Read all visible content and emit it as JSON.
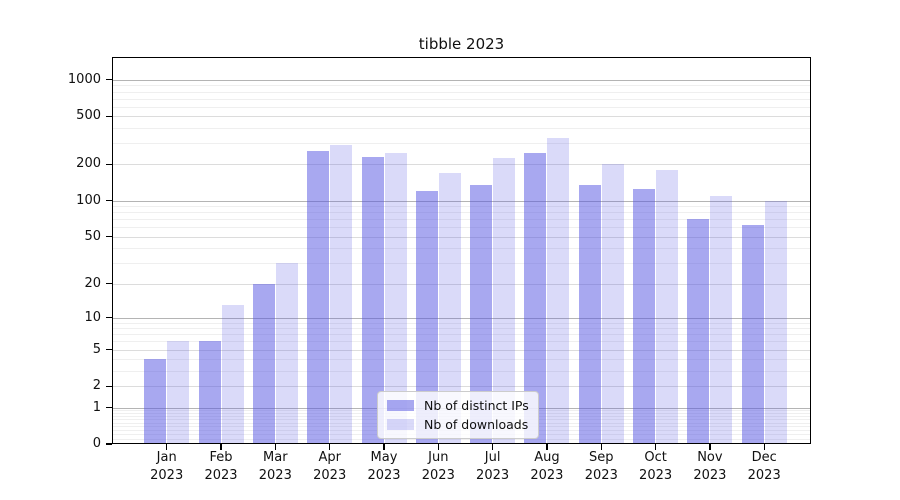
{
  "title": "tibble 2023",
  "chart_data": {
    "type": "bar",
    "title": "tibble 2023",
    "categories": [
      "Jan",
      "Feb",
      "Mar",
      "Apr",
      "May",
      "Jun",
      "Jul",
      "Aug",
      "Sep",
      "Oct",
      "Nov",
      "Dec"
    ],
    "category_year": "2023",
    "series": [
      {
        "name": "Nb of distinct IPs",
        "color": "#5151E180",
        "values": [
          4,
          6,
          20,
          260,
          230,
          120,
          135,
          250,
          135,
          125,
          70,
          63
        ]
      },
      {
        "name": "Nb of downloads",
        "color": "#5151E136",
        "values": [
          6,
          13,
          30,
          290,
          250,
          170,
          225,
          330,
          200,
          180,
          110,
          100
        ]
      }
    ],
    "y_axis": {
      "scale": "log1p",
      "ticks": [
        0,
        1,
        2,
        5,
        10,
        20,
        50,
        100,
        200,
        500,
        1000
      ],
      "range_top": 1500
    },
    "grid": {
      "orientation": "horizontal",
      "major_lines": [
        1,
        10,
        100,
        1000
      ],
      "medium_lines": [
        2,
        5,
        20,
        50,
        200,
        500
      ],
      "minor_lines": [
        0.1,
        0.2,
        0.3,
        0.4,
        0.5,
        0.6,
        0.7,
        0.8,
        0.9,
        3,
        4,
        6,
        7,
        8,
        9,
        30,
        40,
        60,
        70,
        80,
        90,
        300,
        400,
        600,
        700,
        800,
        900
      ]
    },
    "legend": {
      "position": "inside-bottom-center",
      "entries": [
        "Nb of distinct IPs",
        "Nb of downloads"
      ]
    }
  },
  "colors": {
    "background": "#ffffff",
    "spine": "#000000",
    "grid_major": "#b4b4b4",
    "grid_medium": "#dcdcdc",
    "grid_minor": "#efefef",
    "bar_dark": "#5151E180",
    "bar_light": "#5151E136"
  }
}
